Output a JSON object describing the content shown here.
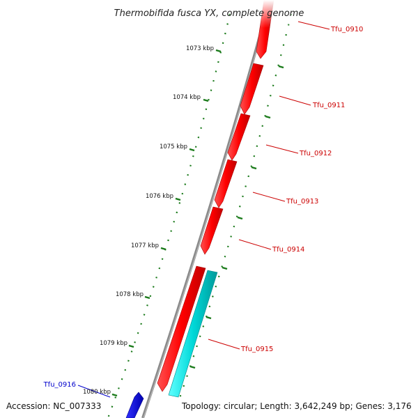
{
  "header": {
    "title": "Thermobifida fusca YX, complete genome"
  },
  "footer": {
    "accession": "Accession: NC_007333",
    "topology": "Topology: circular; Length: 3,642,249 bp; Genes: 3,176"
  },
  "scale": {
    "ticks": [
      {
        "label": "1073 kbp"
      },
      {
        "label": "1074 kbp"
      },
      {
        "label": "1075 kbp"
      },
      {
        "label": "1076 kbp"
      },
      {
        "label": "1077 kbp"
      },
      {
        "label": "1078 kbp"
      },
      {
        "label": "1079 kbp"
      },
      {
        "label": "1080 kbp"
      }
    ]
  },
  "genes": [
    {
      "id": "Tfu_0910",
      "label": "Tfu_0910",
      "strand": "forward",
      "color": "#cc0000"
    },
    {
      "id": "Tfu_0911",
      "label": "Tfu_0911",
      "strand": "forward",
      "color": "#cc0000"
    },
    {
      "id": "Tfu_0912",
      "label": "Tfu_0912",
      "strand": "forward",
      "color": "#cc0000"
    },
    {
      "id": "Tfu_0913",
      "label": "Tfu_0913",
      "strand": "forward",
      "color": "#cc0000"
    },
    {
      "id": "Tfu_0914",
      "label": "Tfu_0914",
      "strand": "forward",
      "color": "#cc0000"
    },
    {
      "id": "Tfu_0915",
      "label": "Tfu_0915",
      "strand": "forward",
      "color": "#cc0000"
    },
    {
      "id": "Tfu_0916",
      "label": "Tfu_0916",
      "strand": "reverse",
      "color": "#0000cc"
    }
  ],
  "colors": {
    "forward_cds": "#ff0000",
    "reverse_cds": "#0000ff",
    "rna": "#00cccc",
    "backbone": "#888888",
    "gc_skew_ticks": "#1a7a1a",
    "forward_label": "#cc0000",
    "reverse_label": "#0000cc"
  }
}
